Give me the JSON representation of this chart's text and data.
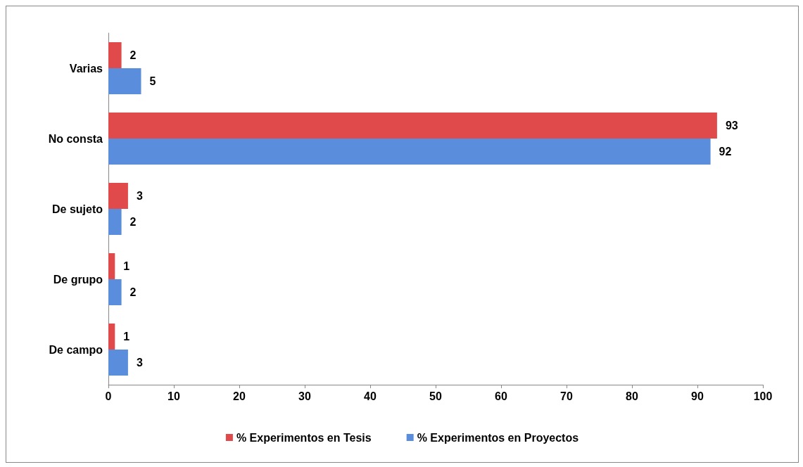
{
  "chart_data": {
    "type": "bar",
    "orientation": "horizontal",
    "categories": [
      "Varias",
      "No consta",
      "De sujeto",
      "De grupo",
      "De campo"
    ],
    "series": [
      {
        "name": "% Experimentos en Tesis",
        "color": "#e04a4a",
        "values": [
          2,
          93,
          3,
          1,
          1
        ]
      },
      {
        "name": "% Experimentos en Proyectos",
        "color": "#5a8edc",
        "values": [
          5,
          92,
          2,
          2,
          3
        ]
      }
    ],
    "xlim": [
      0,
      100
    ],
    "xticks": [
      0,
      10,
      20,
      30,
      40,
      50,
      60,
      70,
      80,
      90,
      100
    ],
    "data_labels": true,
    "legend": "bottom",
    "grid": false
  }
}
